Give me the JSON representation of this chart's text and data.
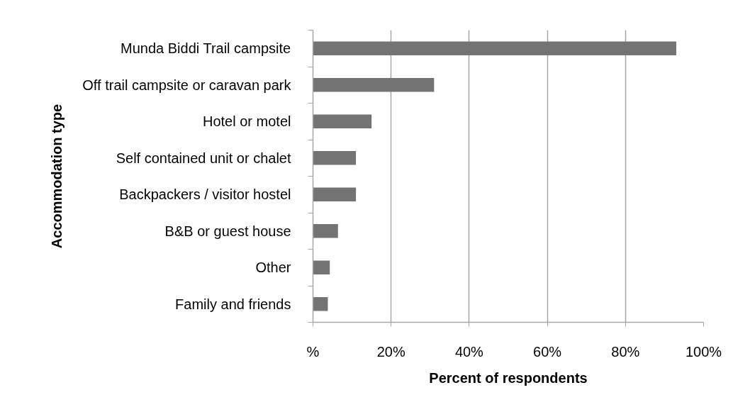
{
  "chart_data": {
    "type": "bar",
    "orientation": "horizontal",
    "categories": [
      "Munda Biddi Trail campsite",
      "Off trail campsite or caravan park",
      "Hotel or motel",
      "Self contained unit or chalet",
      "Backpackers / visitor hostel",
      "B&B or guest house",
      "Other",
      "Family and friends"
    ],
    "values": [
      93,
      31,
      15,
      11,
      11,
      6.4,
      4.3,
      3.8
    ],
    "color": "#737373",
    "xlabel": "Percent of respondents",
    "ylabel": "Accommodation type",
    "xlim": [
      0,
      100
    ],
    "xticks": [
      {
        "value": 0,
        "label": "%"
      },
      {
        "value": 20,
        "label": "20%"
      },
      {
        "value": 40,
        "label": "40%"
      },
      {
        "value": 60,
        "label": "60%"
      },
      {
        "value": 80,
        "label": "80%"
      },
      {
        "value": 100,
        "label": "100%"
      }
    ],
    "grid": "x"
  }
}
